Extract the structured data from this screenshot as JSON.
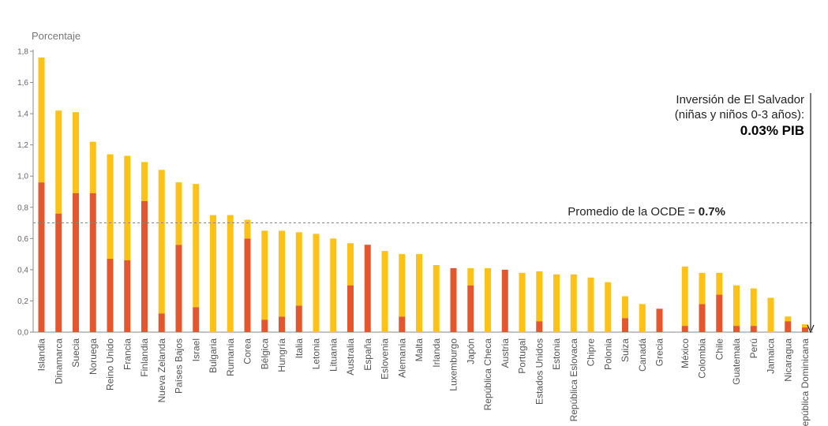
{
  "chart_data": {
    "type": "bar",
    "stacked": true,
    "ylabel": "Porcentaje",
    "ylim": [
      0,
      1.8
    ],
    "yticks": [
      "0,0",
      "0,2",
      "0,4",
      "0,6",
      "0,8",
      "1,0",
      "1,2",
      "1,4",
      "1,6",
      "1,8"
    ],
    "grid": false,
    "categories": [
      "Islandia",
      "Dinamarca",
      "Suecia",
      "Noruega",
      "Reino Unido",
      "Francia",
      "Finlandia",
      "Nueva Zelanda",
      "Países Bajos",
      "Israel",
      "Bulgaria",
      "Rumania",
      "Corea",
      "Bélgica",
      "Hungría",
      "Italia",
      "Letonia",
      "Lituania",
      "Australia",
      "España",
      "Eslovenia",
      "Alemania",
      "Malta",
      "Irlanda",
      "Luxemburgo",
      "Japón",
      "República Checa",
      "Austria",
      "Portugal",
      "Estados Unidos",
      "Estonia",
      "República Eslovaca",
      "Chipre",
      "Polonia",
      "Suiza",
      "Canadá",
      "Grecia",
      "México",
      "Colombia",
      "Chile",
      "Guatemala",
      "Perú",
      "Jamaica",
      "Nicaragua",
      "República Dominicana"
    ],
    "group_gaps_after": [
      "Grecia"
    ],
    "series": [
      {
        "color": "#E4572E",
        "values": [
          0.96,
          0.76,
          0.89,
          0.89,
          0.47,
          0.46,
          0.84,
          0.12,
          0.56,
          0.16,
          0,
          0,
          0.6,
          0.08,
          0.1,
          0.17,
          0,
          0,
          0.3,
          0.56,
          0,
          0.1,
          0,
          0,
          0.41,
          0.3,
          0,
          0.4,
          0,
          0.07,
          0,
          0,
          0,
          0,
          0.09,
          0,
          0.15,
          0.04,
          0.18,
          0.24,
          0.04,
          0.04,
          0,
          0.07,
          0.03
        ]
      },
      {
        "color": "#FEC217",
        "values": [
          0.8,
          0.66,
          0.52,
          0.33,
          0.67,
          0.67,
          0.25,
          0.92,
          0.4,
          0.79,
          0.75,
          0.75,
          0.12,
          0.57,
          0.55,
          0.47,
          0.63,
          0.6,
          0.27,
          0,
          0.52,
          0.4,
          0.5,
          0.43,
          0,
          0.11,
          0.41,
          0,
          0.38,
          0.32,
          0.37,
          0.37,
          0.35,
          0.32,
          0.14,
          0.18,
          0,
          0.38,
          0.2,
          0.14,
          0.26,
          0.24,
          0.22,
          0.03,
          0.02
        ]
      }
    ],
    "reference_line": {
      "value": 0.7,
      "style": "dashed",
      "color": "#888888"
    },
    "annotations": {
      "average_label": "Promedio de la OCDE = ",
      "average_value": "0.7%",
      "arrow_text_line1": "Inversión de El Salvador",
      "arrow_text_line2": "(niñas y niños 0-3 años):",
      "arrow_value": "0.03% PIB"
    }
  }
}
